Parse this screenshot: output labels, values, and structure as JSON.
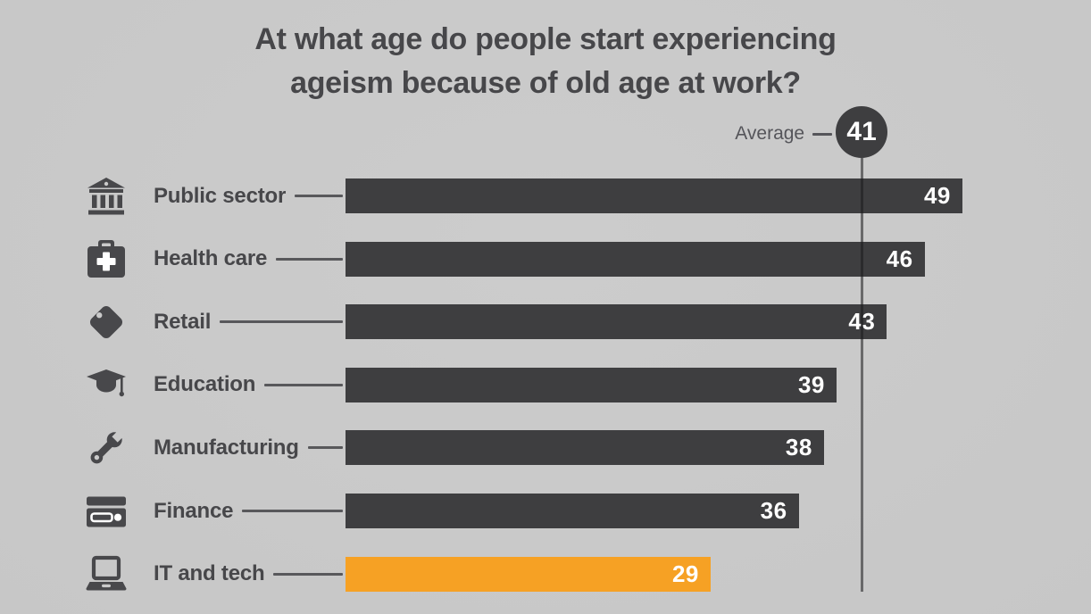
{
  "title_lines": [
    "At what age do people start experiencing",
    "ageism because of old age at work?"
  ],
  "average": {
    "label": "Average",
    "value": 41
  },
  "chart_data": {
    "type": "bar",
    "orientation": "horizontal",
    "title": "At what age do people start experiencing ageism because of old age at work?",
    "categories": [
      "Public sector",
      "Health care",
      "Retail",
      "Education",
      "Manufacturing",
      "Finance",
      "IT and tech"
    ],
    "values": [
      49,
      46,
      43,
      39,
      38,
      36,
      29
    ],
    "icons": [
      "bank-icon",
      "medical-bag-icon",
      "price-tag-icon",
      "graduation-cap-icon",
      "wrench-icon",
      "credit-card-icon",
      "laptop-icon"
    ],
    "average": 41,
    "average_label": "Average",
    "xlim": [
      0,
      59
    ],
    "grid": false,
    "legend": false,
    "highlight_index": 6,
    "colors": {
      "bar": "#3e3e40",
      "highlight": "#f6a124",
      "background": "#cacaca",
      "label_text": "#47474a",
      "value_text": "#ffffff",
      "average_line": "#55555a"
    }
  }
}
